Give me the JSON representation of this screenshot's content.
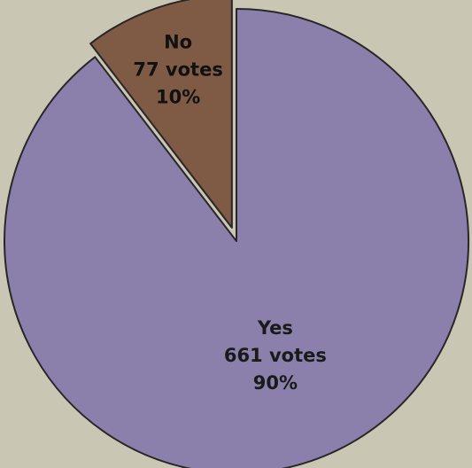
{
  "chart_data": {
    "type": "pie",
    "title": "",
    "slices": [
      {
        "label": "Yes",
        "value": 661,
        "votes_text": "661 votes",
        "percent_text": "90%",
        "exploded": false
      },
      {
        "label": "No",
        "value": 77,
        "votes_text": "77 votes",
        "percent_text": "10%",
        "exploded": true
      }
    ]
  },
  "colors": {
    "yes_fill": "#8a80ab",
    "no_fill": "#7f5a45",
    "background": "#c9c7b4",
    "outline": "#2a2628",
    "no_text": "#111111",
    "yes_text": "#1a1a1a"
  }
}
